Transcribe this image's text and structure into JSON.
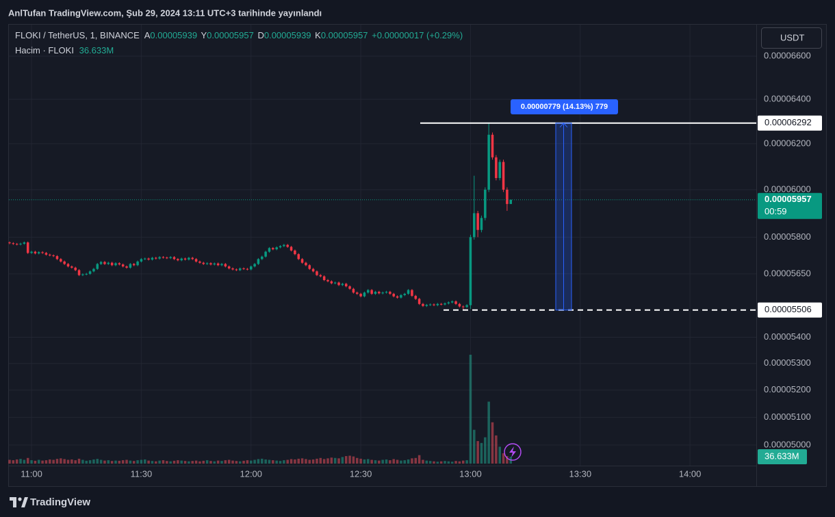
{
  "header": {
    "published": "AnlTufan TradingView.com, Şub 29, 2024 13:11 UTC+3 tarihinde yayınlandı"
  },
  "legend": {
    "symbol": "FLOKI / TetherUS, 1, BINANCE",
    "ohlc": [
      {
        "key": "A",
        "value": "0.00005939"
      },
      {
        "key": "Y",
        "value": "0.00005957"
      },
      {
        "key": "D",
        "value": "0.00005939"
      },
      {
        "key": "K",
        "value": "0.00005957"
      }
    ],
    "change": "+0.00000017 (+0.29%)",
    "volume_title": "Hacim · FLOKI"
  },
  "currency_button": "USDT",
  "footer": {
    "brand": "TradingView"
  },
  "chart_data": {
    "type": "candlestick",
    "x": [
      "10:54",
      "10:55",
      "10:56",
      "10:57",
      "10:58",
      "10:59",
      "11:00",
      "11:01",
      "11:02",
      "11:03",
      "11:04",
      "11:05",
      "11:06",
      "11:07",
      "11:08",
      "11:09",
      "11:10",
      "11:11",
      "11:12",
      "11:13",
      "11:14",
      "11:15",
      "11:16",
      "11:17",
      "11:18",
      "11:19",
      "11:20",
      "11:21",
      "11:22",
      "11:23",
      "11:24",
      "11:25",
      "11:26",
      "11:27",
      "11:28",
      "11:29",
      "11:30",
      "11:31",
      "11:32",
      "11:33",
      "11:34",
      "11:35",
      "11:36",
      "11:37",
      "11:38",
      "11:39",
      "11:40",
      "11:41",
      "11:42",
      "11:43",
      "11:44",
      "11:45",
      "11:46",
      "11:47",
      "11:48",
      "11:49",
      "11:50",
      "11:51",
      "11:52",
      "11:53",
      "11:54",
      "11:55",
      "11:56",
      "11:57",
      "11:58",
      "11:59",
      "12:00",
      "12:01",
      "12:02",
      "12:03",
      "12:04",
      "12:05",
      "12:06",
      "12:07",
      "12:08",
      "12:09",
      "12:10",
      "12:11",
      "12:12",
      "12:13",
      "12:14",
      "12:15",
      "12:16",
      "12:17",
      "12:18",
      "12:19",
      "12:20",
      "12:21",
      "12:22",
      "12:23",
      "12:24",
      "12:25",
      "12:26",
      "12:27",
      "12:28",
      "12:29",
      "12:30",
      "12:31",
      "12:32",
      "12:33",
      "12:34",
      "12:35",
      "12:36",
      "12:37",
      "12:38",
      "12:39",
      "12:40",
      "12:41",
      "12:42",
      "12:43",
      "12:44",
      "12:45",
      "12:46",
      "12:47",
      "12:48",
      "12:49",
      "12:50",
      "12:51",
      "12:52",
      "12:53",
      "12:54",
      "12:55",
      "12:56",
      "12:57",
      "12:58",
      "12:59",
      "13:00",
      "13:01",
      "13:02",
      "13:03",
      "13:04",
      "13:05",
      "13:06",
      "13:07",
      "13:08",
      "13:09",
      "13:10",
      "13:11"
    ],
    "open": [
      5.778e-05,
      5.775e-05,
      5.772e-05,
      5.77e-05,
      5.773e-05,
      5.778e-05,
      5.735e-05,
      5.74e-05,
      5.733e-05,
      5.738e-05,
      5.735e-05,
      5.728e-05,
      5.725e-05,
      5.722e-05,
      5.71e-05,
      5.7e-05,
      5.69e-05,
      5.68e-05,
      5.675e-05,
      5.665e-05,
      5.645e-05,
      5.648e-05,
      5.65e-05,
      5.66e-05,
      5.67e-05,
      5.69e-05,
      5.698e-05,
      5.69e-05,
      5.695e-05,
      5.685e-05,
      5.693e-05,
      5.688e-05,
      5.68e-05,
      5.675e-05,
      5.69e-05,
      5.685e-05,
      5.7e-05,
      5.71e-05,
      5.712e-05,
      5.708e-05,
      5.715e-05,
      5.712e-05,
      5.718e-05,
      5.716e-05,
      5.714e-05,
      5.718e-05,
      5.71e-05,
      5.705e-05,
      5.712e-05,
      5.708e-05,
      5.715e-05,
      5.71e-05,
      5.7e-05,
      5.695e-05,
      5.69e-05,
      5.693e-05,
      5.688e-05,
      5.692e-05,
      5.685e-05,
      5.69e-05,
      5.68e-05,
      5.672e-05,
      5.668e-05,
      5.665e-05,
      5.672e-05,
      5.67e-05,
      5.668e-05,
      5.68e-05,
      5.69e-05,
      5.71e-05,
      5.72e-05,
      5.74e-05,
      5.755e-05,
      5.75e-05,
      5.758e-05,
      5.763e-05,
      5.768e-05,
      5.76e-05,
      5.745e-05,
      5.73e-05,
      5.71e-05,
      5.695e-05,
      5.685e-05,
      5.67e-05,
      5.66e-05,
      5.645e-05,
      5.64e-05,
      5.625e-05,
      5.62e-05,
      5.612e-05,
      5.615e-05,
      5.605e-05,
      5.61e-05,
      5.6e-05,
      5.59e-05,
      5.575e-05,
      5.57e-05,
      5.56e-05,
      5.575e-05,
      5.585e-05,
      5.57e-05,
      5.578e-05,
      5.572e-05,
      5.575e-05,
      5.578e-05,
      5.57e-05,
      5.56e-05,
      5.555e-05,
      5.565e-05,
      5.57e-05,
      5.585e-05,
      5.562e-05,
      5.55e-05,
      5.53e-05,
      5.522e-05,
      5.526e-05,
      5.528e-05,
      5.525e-05,
      5.53e-05,
      5.528e-05,
      5.532e-05,
      5.536e-05,
      5.54e-05,
      5.53e-05,
      5.52e-05,
      5.518e-05,
      5.525e-05,
      5.8e-05,
      5.9e-05,
      5.83e-05,
      5.88e-05,
      6e-05,
      6.24e-05,
      6.14e-05,
      6.05e-05,
      6.12e-05,
      6e-05,
      5.939e-05
    ],
    "high": [
      5.782e-05,
      5.779e-05,
      5.776e-05,
      5.777e-05,
      5.782e-05,
      5.782e-05,
      5.744e-05,
      5.744e-05,
      5.742e-05,
      5.742e-05,
      5.739e-05,
      5.732e-05,
      5.729e-05,
      5.726e-05,
      5.714e-05,
      5.704e-05,
      5.694e-05,
      5.684e-05,
      5.679e-05,
      5.669e-05,
      5.652e-05,
      5.654e-05,
      5.664e-05,
      5.674e-05,
      5.694e-05,
      5.702e-05,
      5.702e-05,
      5.699e-05,
      5.699e-05,
      5.697e-05,
      5.697e-05,
      5.692e-05,
      5.684e-05,
      5.694e-05,
      5.694e-05,
      5.704e-05,
      5.714e-05,
      5.716e-05,
      5.716e-05,
      5.719e-05,
      5.719e-05,
      5.722e-05,
      5.722e-05,
      5.72e-05,
      5.722e-05,
      5.722e-05,
      5.714e-05,
      5.716e-05,
      5.716e-05,
      5.719e-05,
      5.719e-05,
      5.714e-05,
      5.704e-05,
      5.699e-05,
      5.697e-05,
      5.697e-05,
      5.696e-05,
      5.696e-05,
      5.694e-05,
      5.694e-05,
      5.684e-05,
      5.676e-05,
      5.672e-05,
      5.676e-05,
      5.676e-05,
      5.674e-05,
      5.684e-05,
      5.694e-05,
      5.714e-05,
      5.724e-05,
      5.744e-05,
      5.759e-05,
      5.759e-05,
      5.762e-05,
      5.767e-05,
      5.772e-05,
      5.772e-05,
      5.764e-05,
      5.749e-05,
      5.734e-05,
      5.714e-05,
      5.699e-05,
      5.689e-05,
      5.674e-05,
      5.664e-05,
      5.649e-05,
      5.644e-05,
      5.629e-05,
      5.624e-05,
      5.619e-05,
      5.619e-05,
      5.614e-05,
      5.614e-05,
      5.604e-05,
      5.594e-05,
      5.579e-05,
      5.574e-05,
      5.579e-05,
      5.589e-05,
      5.589e-05,
      5.582e-05,
      5.582e-05,
      5.579e-05,
      5.582e-05,
      5.582e-05,
      5.574e-05,
      5.564e-05,
      5.569e-05,
      5.574e-05,
      5.589e-05,
      5.589e-05,
      5.566e-05,
      5.554e-05,
      5.534e-05,
      5.53e-05,
      5.532e-05,
      5.532e-05,
      5.534e-05,
      5.534e-05,
      5.536e-05,
      5.54e-05,
      5.544e-05,
      5.544e-05,
      5.534e-05,
      5.524e-05,
      5.529e-05,
      5.81e-05,
      6.06e-05,
      5.91e-05,
      5.89e-05,
      6.01e-05,
      6.292e-05,
      6.25e-05,
      6.15e-05,
      6.13e-05,
      6.13e-05,
      6.01e-05,
      5.957e-05
    ],
    "low": [
      5.771e-05,
      5.768e-05,
      5.766e-05,
      5.766e-05,
      5.769e-05,
      5.731e-05,
      5.731e-05,
      5.729e-05,
      5.729e-05,
      5.731e-05,
      5.724e-05,
      5.721e-05,
      5.718e-05,
      5.706e-05,
      5.696e-05,
      5.686e-05,
      5.676e-05,
      5.671e-05,
      5.661e-05,
      5.641e-05,
      5.641e-05,
      5.644e-05,
      5.646e-05,
      5.656e-05,
      5.666e-05,
      5.686e-05,
      5.686e-05,
      5.686e-05,
      5.681e-05,
      5.681e-05,
      5.684e-05,
      5.676e-05,
      5.671e-05,
      5.671e-05,
      5.681e-05,
      5.681e-05,
      5.696e-05,
      5.706e-05,
      5.704e-05,
      5.704e-05,
      5.708e-05,
      5.708e-05,
      5.712e-05,
      5.71e-05,
      5.71e-05,
      5.706e-05,
      5.701e-05,
      5.701e-05,
      5.704e-05,
      5.704e-05,
      5.706e-05,
      5.696e-05,
      5.691e-05,
      5.686e-05,
      5.686e-05,
      5.684e-05,
      5.684e-05,
      5.681e-05,
      5.681e-05,
      5.676e-05,
      5.668e-05,
      5.664e-05,
      5.661e-05,
      5.661e-05,
      5.666e-05,
      5.664e-05,
      5.664e-05,
      5.676e-05,
      5.686e-05,
      5.706e-05,
      5.716e-05,
      5.736e-05,
      5.746e-05,
      5.746e-05,
      5.754e-05,
      5.759e-05,
      5.756e-05,
      5.741e-05,
      5.726e-05,
      5.706e-05,
      5.691e-05,
      5.681e-05,
      5.666e-05,
      5.656e-05,
      5.641e-05,
      5.636e-05,
      5.621e-05,
      5.616e-05,
      5.608e-05,
      5.608e-05,
      5.601e-05,
      5.601e-05,
      5.596e-05,
      5.586e-05,
      5.571e-05,
      5.566e-05,
      5.556e-05,
      5.556e-05,
      5.571e-05,
      5.566e-05,
      5.566e-05,
      5.568e-05,
      5.568e-05,
      5.571e-05,
      5.566e-05,
      5.556e-05,
      5.551e-05,
      5.551e-05,
      5.561e-05,
      5.566e-05,
      5.558e-05,
      5.546e-05,
      5.526e-05,
      5.518e-05,
      5.518e-05,
      5.522e-05,
      5.521e-05,
      5.521e-05,
      5.524e-05,
      5.524e-05,
      5.528e-05,
      5.532e-05,
      5.526e-05,
      5.516e-05,
      5.506e-05,
      5.514e-05,
      5.51e-05,
      5.79e-05,
      5.8e-05,
      5.82e-05,
      5.87e-05,
      5.99e-05,
      6.13e-05,
      6.04e-05,
      6.04e-05,
      5.99e-05,
      5.91e-05,
      5.939e-05
    ],
    "close": [
      5.775e-05,
      5.772e-05,
      5.77e-05,
      5.773e-05,
      5.778e-05,
      5.735e-05,
      5.74e-05,
      5.733e-05,
      5.738e-05,
      5.735e-05,
      5.728e-05,
      5.725e-05,
      5.722e-05,
      5.71e-05,
      5.7e-05,
      5.69e-05,
      5.68e-05,
      5.675e-05,
      5.665e-05,
      5.645e-05,
      5.648e-05,
      5.65e-05,
      5.66e-05,
      5.67e-05,
      5.69e-05,
      5.698e-05,
      5.69e-05,
      5.695e-05,
      5.685e-05,
      5.693e-05,
      5.688e-05,
      5.68e-05,
      5.675e-05,
      5.69e-05,
      5.685e-05,
      5.7e-05,
      5.71e-05,
      5.712e-05,
      5.708e-05,
      5.715e-05,
      5.712e-05,
      5.718e-05,
      5.716e-05,
      5.714e-05,
      5.718e-05,
      5.71e-05,
      5.705e-05,
      5.712e-05,
      5.708e-05,
      5.715e-05,
      5.71e-05,
      5.7e-05,
      5.695e-05,
      5.69e-05,
      5.693e-05,
      5.688e-05,
      5.692e-05,
      5.685e-05,
      5.69e-05,
      5.68e-05,
      5.672e-05,
      5.668e-05,
      5.665e-05,
      5.672e-05,
      5.67e-05,
      5.668e-05,
      5.68e-05,
      5.69e-05,
      5.71e-05,
      5.72e-05,
      5.74e-05,
      5.755e-05,
      5.75e-05,
      5.758e-05,
      5.763e-05,
      5.768e-05,
      5.76e-05,
      5.745e-05,
      5.73e-05,
      5.71e-05,
      5.695e-05,
      5.685e-05,
      5.67e-05,
      5.66e-05,
      5.645e-05,
      5.64e-05,
      5.625e-05,
      5.62e-05,
      5.612e-05,
      5.615e-05,
      5.605e-05,
      5.61e-05,
      5.6e-05,
      5.59e-05,
      5.575e-05,
      5.57e-05,
      5.56e-05,
      5.575e-05,
      5.585e-05,
      5.57e-05,
      5.578e-05,
      5.572e-05,
      5.575e-05,
      5.578e-05,
      5.57e-05,
      5.56e-05,
      5.555e-05,
      5.565e-05,
      5.57e-05,
      5.585e-05,
      5.562e-05,
      5.55e-05,
      5.53e-05,
      5.522e-05,
      5.526e-05,
      5.528e-05,
      5.525e-05,
      5.53e-05,
      5.528e-05,
      5.532e-05,
      5.536e-05,
      5.54e-05,
      5.53e-05,
      5.52e-05,
      5.518e-05,
      5.525e-05,
      5.8e-05,
      5.9e-05,
      5.83e-05,
      5.88e-05,
      6e-05,
      6.24e-05,
      6.14e-05,
      6.05e-05,
      6.12e-05,
      6e-05,
      5.939e-05,
      5.957e-05
    ],
    "volume": [
      20,
      18,
      22,
      25,
      20,
      30,
      18,
      15,
      20,
      16,
      18,
      22,
      20,
      25,
      28,
      24,
      20,
      22,
      18,
      26,
      20,
      15,
      18,
      22,
      25,
      20,
      16,
      18,
      14,
      16,
      15,
      18,
      20,
      16,
      14,
      18,
      20,
      22,
      16,
      14,
      12,
      16,
      18,
      14,
      12,
      15,
      18,
      16,
      14,
      12,
      14,
      16,
      12,
      15,
      18,
      14,
      12,
      16,
      14,
      18,
      20,
      16,
      14,
      12,
      15,
      18,
      16,
      20,
      24,
      26,
      22,
      20,
      18,
      16,
      14,
      18,
      20,
      24,
      22,
      26,
      28,
      24,
      20,
      22,
      26,
      30,
      24,
      28,
      32,
      30,
      28,
      35,
      40,
      42,
      38,
      30,
      26,
      22,
      24,
      20,
      18,
      16,
      20,
      22,
      18,
      24,
      20,
      16,
      18,
      22,
      28,
      30,
      45,
      20,
      16,
      14,
      12,
      10,
      12,
      14,
      12,
      10,
      14,
      12,
      16,
      18,
      580,
      180,
      120,
      110,
      140,
      330,
      220,
      150,
      90,
      55,
      40,
      36.633
    ],
    "volume_label": {
      "value": 36.633,
      "label": "36.633M"
    },
    "ylim": [
      4.927e-05,
      6.7535e-05
    ],
    "log_scale": true,
    "yticks": [
      {
        "value": 6.6e-05,
        "label": "0.00006600"
      },
      {
        "value": 6.4e-05,
        "label": "0.00006400"
      },
      {
        "value": 6.2e-05,
        "label": "0.00006200"
      },
      {
        "value": 6e-05,
        "label": "0.00006000"
      },
      {
        "value": 5.8e-05,
        "label": "0.00005800"
      },
      {
        "value": 5.65e-05,
        "label": "0.00005650"
      },
      {
        "value": 5.4e-05,
        "label": "0.00005400"
      },
      {
        "value": 5.3e-05,
        "label": "0.00005300"
      },
      {
        "value": 5.2e-05,
        "label": "0.00005200"
      },
      {
        "value": 5.1e-05,
        "label": "0.00005100"
      },
      {
        "value": 5e-05,
        "label": "0.00005000"
      }
    ],
    "xlim": [
      "10:54",
      "14:17"
    ],
    "xticks": [
      "11:00",
      "11:30",
      "12:00",
      "12:30",
      "13:00",
      "13:30",
      "14:00"
    ],
    "grid": true,
    "colors": {
      "up": "#089981",
      "down": "#f23645",
      "volume_up": "rgba(34,171,148,0.5)",
      "volume_down": "rgba(247,82,95,0.5)"
    },
    "last_price": {
      "value": 5.957e-05,
      "label": "0.00005957"
    },
    "countdown": "00:59",
    "levels": [
      {
        "value": 6.292e-05,
        "label": "0.00006292"
      },
      {
        "value": 5.506e-05,
        "label": "0.00005506"
      }
    ],
    "measure_label": "0.00000779 (14.13%) 779"
  }
}
